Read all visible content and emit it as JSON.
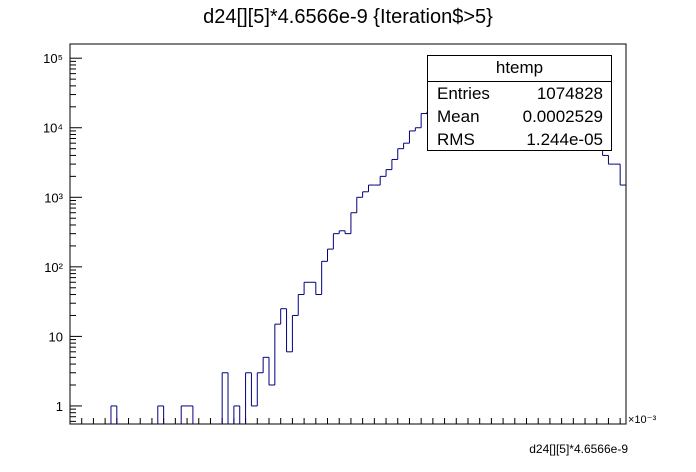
{
  "title": "d24[][5]*4.6566e-9 {Iteration$>5}",
  "stats": {
    "name": "htemp",
    "rows": [
      {
        "label": "Entries",
        "value": "1074828"
      },
      {
        "label": "Mean",
        "value": "0.0002529"
      },
      {
        "label": "RMS",
        "value": "1.244e-05"
      }
    ]
  },
  "chart_data": {
    "type": "bar",
    "histogram": true,
    "title": "d24[][5]*4.6566e-9 {Iteration$>5}",
    "xlabel": "d24[][5]*4.6566e-9",
    "ylabel": "",
    "x_multiplier": "×10⁻³",
    "x_unit_scale": 0.001,
    "xlim": [
      0.172,
      0.362
    ],
    "ylim": [
      0.55,
      160000
    ],
    "yscale": "log",
    "line_color": "#00007f",
    "x_ticks": [
      "0.18",
      "0.2",
      "0.22",
      "0.24",
      "0.26",
      "0.28",
      "0.3",
      "0.32",
      "0.34",
      "0.36"
    ],
    "y_ticks": [
      "1",
      "10",
      "10²",
      "10³",
      "10⁴",
      "10⁵"
    ],
    "bin_width": 0.002,
    "bin_edges_start": 0.172,
    "values": [
      0,
      0,
      0,
      0,
      0,
      0,
      0,
      1,
      0,
      0,
      0,
      0,
      0,
      0,
      0,
      1,
      0,
      0,
      0,
      1,
      1,
      0,
      0,
      0,
      0,
      0,
      3,
      0,
      1,
      0,
      3,
      1,
      3,
      5,
      2,
      15,
      25,
      6,
      20,
      40,
      60,
      60,
      40,
      120,
      180,
      300,
      330,
      300,
      600,
      1000,
      1200,
      1500,
      1500,
      2000,
      2500,
      3500,
      5000,
      6000,
      9000,
      10000,
      16000,
      17000,
      20000,
      26000,
      26000,
      35000,
      42000,
      40000,
      55000,
      57000,
      70000,
      69000,
      75000,
      80000,
      60000,
      70000,
      80000,
      77000,
      62000,
      55000,
      45000,
      47000,
      42000,
      33000,
      37000,
      25000,
      17000,
      15000,
      11000,
      7000,
      7000,
      4000,
      3000,
      3000,
      1500,
      1000,
      600,
      500,
      500,
      150,
      100,
      80,
      25,
      18,
      15,
      10,
      8,
      5,
      3,
      1.5,
      1.5,
      1,
      1,
      1,
      0,
      0,
      0,
      0,
      0,
      0,
      0,
      1,
      0,
      0,
      0,
      1,
      0,
      0,
      0,
      1,
      0,
      0,
      0,
      1,
      0,
      0,
      0,
      0,
      0,
      0,
      0,
      1,
      0,
      0,
      0,
      0,
      0,
      0
    ]
  }
}
